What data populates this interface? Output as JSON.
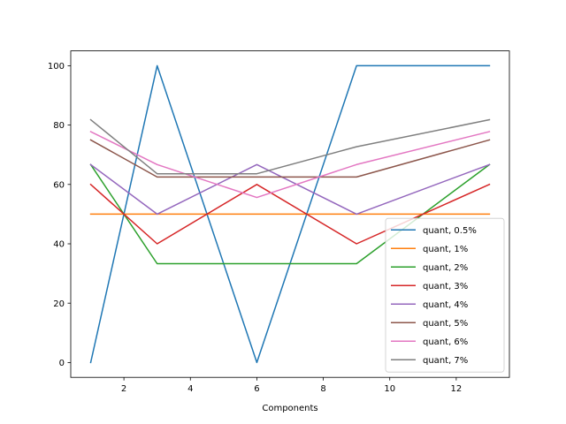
{
  "chart_data": {
    "type": "line",
    "title": "",
    "xlabel": "Components",
    "ylabel": "",
    "xlim": [
      0.4,
      13.6
    ],
    "ylim": [
      -5,
      105
    ],
    "x_ticks": [
      2,
      4,
      6,
      8,
      10,
      12
    ],
    "y_ticks": [
      0,
      20,
      40,
      60,
      80,
      100
    ],
    "grid": false,
    "legend_position": "lower-right",
    "series": [
      {
        "name": "quant, 0.5%",
        "color": "#1f77b4",
        "x": [
          1,
          3,
          6,
          9,
          13
        ],
        "values": [
          0,
          100,
          0,
          100,
          100
        ]
      },
      {
        "name": "quant, 1%",
        "color": "#ff7f0e",
        "x": [
          1,
          3,
          6,
          9,
          13
        ],
        "values": [
          50,
          50,
          50,
          50,
          50
        ]
      },
      {
        "name": "quant, 2%",
        "color": "#2ca02c",
        "x": [
          1,
          3,
          6,
          9,
          13
        ],
        "values": [
          66.7,
          33.3,
          33.3,
          33.3,
          66.7
        ]
      },
      {
        "name": "quant, 3%",
        "color": "#d62728",
        "x": [
          1,
          3,
          6,
          9,
          13
        ],
        "values": [
          60,
          40,
          60,
          40,
          60
        ]
      },
      {
        "name": "quant, 4%",
        "color": "#9467bd",
        "x": [
          1,
          3,
          6,
          9,
          13
        ],
        "values": [
          66.7,
          50,
          66.7,
          50,
          66.7
        ]
      },
      {
        "name": "quant, 5%",
        "color": "#8c564b",
        "x": [
          1,
          3,
          6,
          9,
          13
        ],
        "values": [
          75,
          62.5,
          62.5,
          62.5,
          75
        ]
      },
      {
        "name": "quant, 6%",
        "color": "#e377c2",
        "x": [
          1,
          3,
          6,
          9,
          13
        ],
        "values": [
          77.8,
          66.7,
          55.6,
          66.7,
          77.8
        ]
      },
      {
        "name": "quant, 7%",
        "color": "#7f7f7f",
        "x": [
          1,
          3,
          6,
          9,
          13
        ],
        "values": [
          81.8,
          63.6,
          63.6,
          72.7,
          81.8
        ]
      }
    ]
  }
}
